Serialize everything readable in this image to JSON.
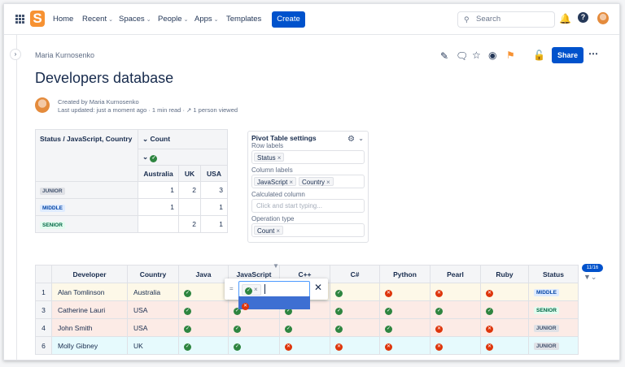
{
  "nav": {
    "items": [
      {
        "label": "Home",
        "chev": false
      },
      {
        "label": "Recent",
        "chev": true
      },
      {
        "label": "Spaces",
        "chev": true
      },
      {
        "label": "People",
        "chev": true
      },
      {
        "label": "Apps",
        "chev": true
      },
      {
        "label": "Templates",
        "chev": false
      }
    ],
    "create": "Create",
    "search_placeholder": "Search"
  },
  "page": {
    "breadcrumb": "Maria Kurnosenko",
    "title": "Developers database",
    "created_by": "Created by Maria Kurnosenko",
    "last_updated": "Last updated: just a moment ago",
    "read_time": "1 min read",
    "viewed": "1 person viewed",
    "share": "Share"
  },
  "pivot": {
    "corner": "Status / JavaScript, Country",
    "count": "Count",
    "countries": [
      "Australia",
      "UK",
      "USA"
    ],
    "rows": [
      {
        "status": "JUNIOR",
        "vals": [
          "1",
          "2",
          "3"
        ]
      },
      {
        "status": "MIDDLE",
        "vals": [
          "1",
          "",
          "1"
        ]
      },
      {
        "status": "SENIOR",
        "vals": [
          "",
          "2",
          "1"
        ]
      }
    ]
  },
  "settings": {
    "title": "Pivot Table settings",
    "row_labels": "Row labels",
    "row_tags": [
      "Status"
    ],
    "column_labels": "Column labels",
    "column_tags": [
      "JavaScript",
      "Country"
    ],
    "calc_label": "Calculated column",
    "calc_placeholder": "Click and start typing...",
    "op_label": "Operation type",
    "op_tags": [
      "Count"
    ]
  },
  "table": {
    "headers": [
      "",
      "Developer",
      "Country",
      "Java",
      "JavaScript",
      "C++",
      "C#",
      "Python",
      "Pearl",
      "Ruby",
      "Status"
    ],
    "filter_count": "11/16",
    "rows": [
      {
        "n": "1",
        "dev": "Alan Tomlinson",
        "country": "Australia",
        "skills": [
          "ok",
          null,
          null,
          "ok",
          "no",
          "no",
          "no"
        ],
        "status": "MIDDLE",
        "tone": "y"
      },
      {
        "n": "3",
        "dev": "Catherine Lauri",
        "country": "USA",
        "skills": [
          "ok",
          "ok",
          "ok",
          "ok",
          "ok",
          "ok",
          "ok"
        ],
        "status": "SENIOR",
        "tone": "r"
      },
      {
        "n": "4",
        "dev": "John Smith",
        "country": "USA",
        "skills": [
          "ok",
          "ok",
          "ok",
          "ok",
          "ok",
          "no",
          "no"
        ],
        "status": "JUNIOR",
        "tone": "r"
      },
      {
        "n": "6",
        "dev": "Molly Gibney",
        "country": "UK",
        "skills": [
          "ok",
          "ok",
          "no",
          "no",
          "no",
          "no",
          "no"
        ],
        "status": "JUNIOR",
        "tone": "b"
      }
    ]
  },
  "filter": {
    "operator": "="
  }
}
